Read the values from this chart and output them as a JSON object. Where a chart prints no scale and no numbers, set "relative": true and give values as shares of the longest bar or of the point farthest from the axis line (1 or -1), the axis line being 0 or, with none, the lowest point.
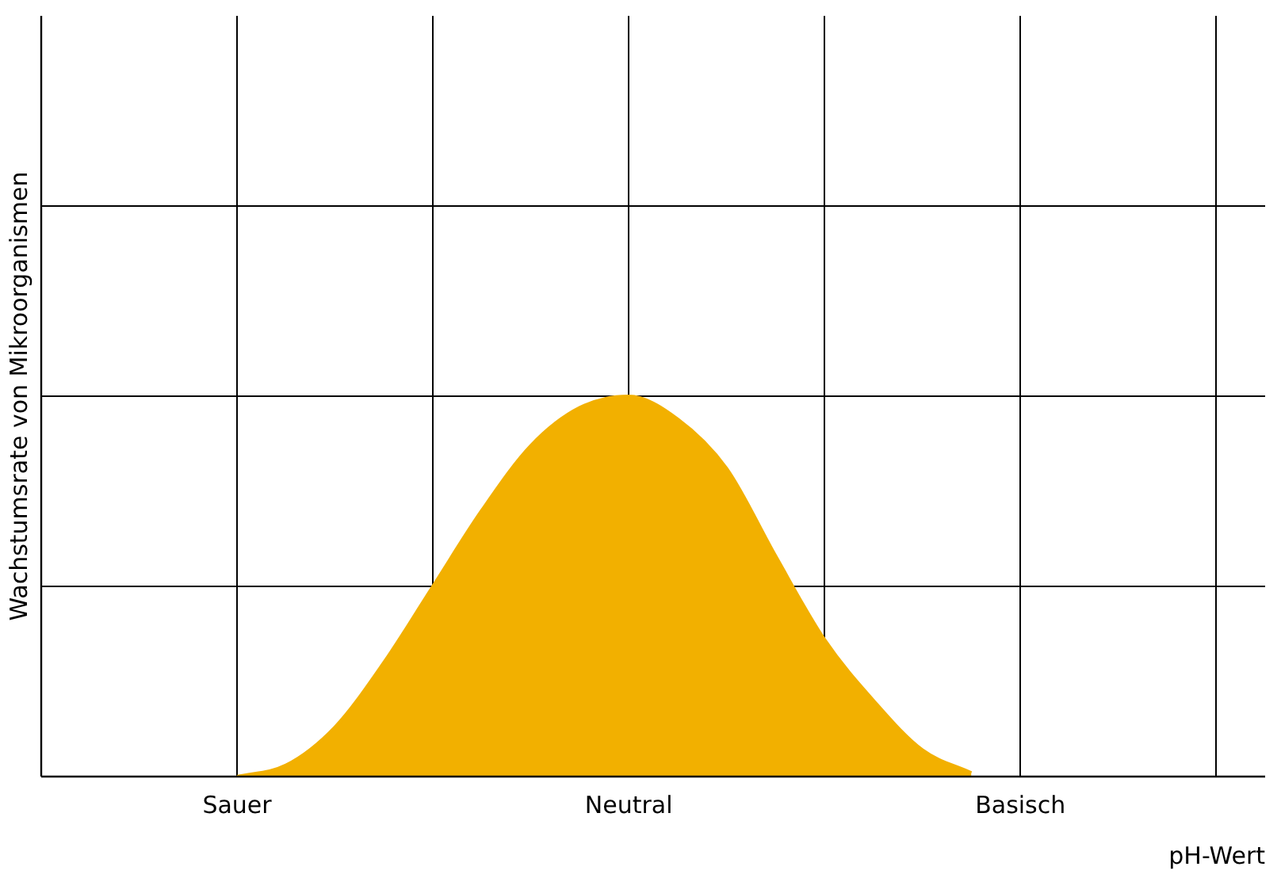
{
  "chart_data": {
    "type": "area",
    "relative": true,
    "xlabel": "pH-Wert",
    "ylabel": "Wachstumsrate von Mikroorganismen",
    "categories": [
      null,
      null,
      null,
      null,
      "Sauer",
      null,
      null,
      null,
      null,
      null,
      null,
      null,
      "Neutral",
      null,
      null,
      null,
      null,
      null,
      null,
      null,
      "Basisch",
      null,
      null,
      null,
      null,
      null
    ],
    "series": [
      {
        "color": "#f2b000",
        "values": [
          null,
          null,
          null,
          null,
          0,
          0.03,
          0.13,
          0.3,
          0.5,
          0.7,
          0.87,
          0.97,
          1,
          0.94,
          0.81,
          0.58,
          0.36,
          0.2,
          0.07,
          0.01,
          null,
          null,
          null,
          null,
          null,
          null
        ]
      }
    ],
    "grid": true,
    "legend": false,
    "tick_labels": "x"
  }
}
